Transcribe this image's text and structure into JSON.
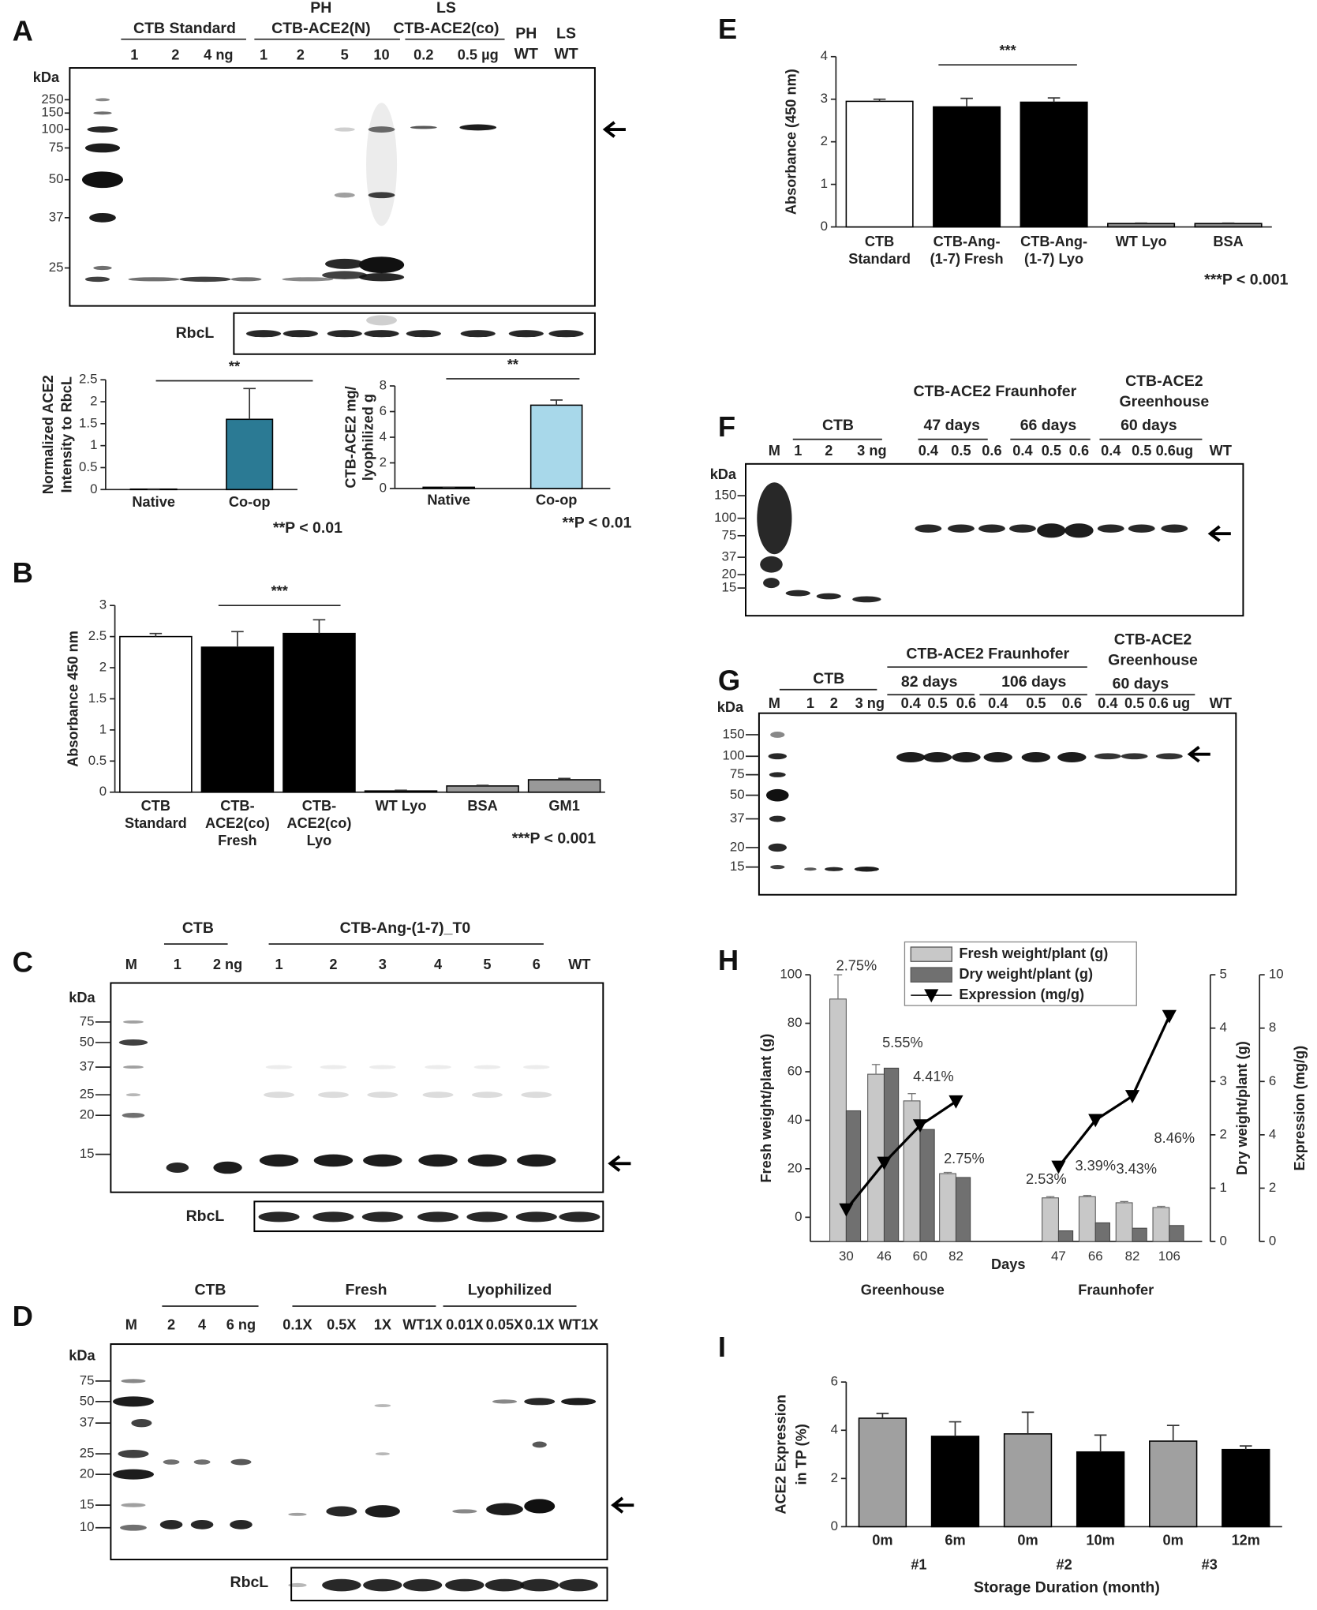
{
  "panel_labels": [
    "A",
    "B",
    "C",
    "D",
    "E",
    "F",
    "G",
    "H",
    "I"
  ],
  "blots": [
    {
      "groups": [
        [
          "CTB Standard"
        ],
        [
          "PH",
          "CTB-ACE2(N)"
        ],
        [
          "LS",
          "CTB-ACE2(co)"
        ],
        [
          "PH",
          "WT"
        ],
        [
          "LS",
          "WT"
        ]
      ],
      "lanes": [
        "1",
        "2",
        "4 ng",
        "1",
        "2",
        "5",
        "10",
        "0.2",
        "0.5 µg"
      ],
      "kda": "kDa",
      "markers": [
        250,
        150,
        100,
        75,
        50,
        37,
        25
      ],
      "loading_control": "RbcL"
    },
    {
      "groups": [
        [
          "CTB"
        ],
        [
          "CTB-Ang-(1-7)_T0"
        ]
      ],
      "lanes": [
        "M",
        "1",
        "2 ng",
        "1",
        "2",
        "3",
        "4",
        "5",
        "6",
        "WT"
      ],
      "kda": "kDa",
      "markers": [
        75,
        50,
        37,
        25,
        20,
        15
      ],
      "loading_control": "RbcL"
    },
    {
      "groups": [
        [
          "CTB"
        ],
        [
          "Fresh"
        ],
        [
          "Lyophilized"
        ]
      ],
      "lanes": [
        "M",
        "2",
        "4",
        "6 ng",
        "0.1X",
        "0.5X",
        "1X",
        "WT1X",
        "0.01X",
        "0.05X",
        "0.1X",
        "WT1X"
      ],
      "kda": "kDa",
      "markers": [
        75,
        50,
        37,
        25,
        20,
        15,
        10
      ],
      "loading_control": "RbcL"
    },
    {
      "groups": [
        [
          "CTB"
        ],
        [
          "CTB-ACE2 Fraunhofer"
        ],
        [
          "47 days"
        ],
        [
          "66 days"
        ],
        [
          "CTB-ACE2",
          "Greenhouse"
        ],
        [
          "60 days"
        ]
      ],
      "lanes": [
        "M",
        "1",
        "2",
        "3 ng",
        "0.4",
        "0.5",
        "0.6",
        "0.4",
        "0.5",
        "0.6",
        "0.4",
        "0.5",
        "0.6ug",
        "WT"
      ],
      "kda": "kDa",
      "markers": [
        150,
        100,
        75,
        37,
        20,
        15
      ]
    },
    {
      "groups": [
        [
          "CTB"
        ],
        [
          "CTB-ACE2 Fraunhofer"
        ],
        [
          "82 days"
        ],
        [
          "106 days"
        ],
        [
          "CTB-ACE2",
          "Greenhouse"
        ],
        [
          "60 days"
        ]
      ],
      "lanes": [
        "M",
        "1",
        "2",
        "3 ng",
        "0.4",
        "0.5",
        "0.6",
        "0.4",
        "0.5",
        "0.6",
        "0.4",
        "0.5",
        "0.6 ug",
        "WT"
      ],
      "kda": "kDa",
      "markers": [
        150,
        100,
        75,
        50,
        37,
        20,
        15
      ]
    }
  ],
  "chart_data": [
    {
      "type": "bar",
      "ylabel": [
        "Normalized ACE2",
        "Intensity to RbcL"
      ],
      "categories": [
        [
          "Native"
        ],
        [
          "Co-op"
        ]
      ],
      "values": [
        0.01,
        1.6
      ],
      "errors": [
        0,
        0.7
      ],
      "colors": [
        "#2b7a94",
        "#2b7a94"
      ],
      "ylim": [
        0,
        2.5
      ],
      "yticks": [
        0,
        0.5,
        1,
        1.5,
        2,
        2.5
      ],
      "significance": "**",
      "note": "**P < 0.01"
    },
    {
      "type": "bar",
      "ylabel": [
        "CTB-ACE2 mg/",
        "lyophilized g"
      ],
      "categories": [
        [
          "Native"
        ],
        [
          "Co-op"
        ]
      ],
      "values": [
        0.1,
        6.5
      ],
      "errors": [
        0,
        0.4
      ],
      "colors": [
        "#a8d8ea",
        "#a8d8ea"
      ],
      "ylim": [
        0,
        8
      ],
      "yticks": [
        0,
        2,
        4,
        6,
        8
      ],
      "significance": "**",
      "note": "**P < 0.01"
    },
    {
      "type": "bar",
      "ylabel": [
        "Absorbance 450 nm"
      ],
      "categories": [
        [
          "CTB",
          "Standard"
        ],
        [
          "CTB-",
          "ACE2(co)",
          "Fresh"
        ],
        [
          "CTB-",
          "ACE2(co)",
          "Lyo"
        ],
        [
          "WT Lyo"
        ],
        [
          "BSA"
        ],
        [
          "GM1"
        ]
      ],
      "values": [
        2.5,
        2.33,
        2.55,
        0.02,
        0.1,
        0.2
      ],
      "errors": [
        0.05,
        0.25,
        0.22,
        0.01,
        0.01,
        0.02
      ],
      "colors": [
        "#ffffff",
        "#000000",
        "#000000",
        "#888888",
        "#999999",
        "#999999"
      ],
      "ylim": [
        0,
        3
      ],
      "yticks": [
        0,
        0.5,
        1,
        1.5,
        2,
        2.5,
        3
      ],
      "significance": "***",
      "note": "***P < 0.001"
    },
    {
      "type": "bar",
      "ylabel": [
        "Absorbance (450 nm)"
      ],
      "categories": [
        [
          "CTB",
          "Standard"
        ],
        [
          "CTB-Ang-",
          "(1-7) Fresh"
        ],
        [
          "CTB-Ang-",
          "(1-7) Lyo"
        ],
        [
          "WT Lyo"
        ],
        [
          "BSA"
        ]
      ],
      "values": [
        2.95,
        2.82,
        2.93,
        0.08,
        0.08
      ],
      "errors": [
        0.05,
        0.2,
        0.1,
        0.01,
        0.01
      ],
      "colors": [
        "#ffffff",
        "#000000",
        "#000000",
        "#888888",
        "#888888"
      ],
      "ylim": [
        0,
        4
      ],
      "yticks": [
        0,
        1,
        2,
        3,
        4
      ],
      "significance": "***",
      "note": "***P < 0.001"
    },
    {
      "type": "combo",
      "ylabel": "Fresh weight/plant (g)",
      "y2label": "Dry weight/plant (g)",
      "y3label": "Expression (mg/g)",
      "xlabel": "Days",
      "categories": [
        "30",
        "46",
        "60",
        "82",
        null,
        "47",
        "66",
        "82",
        "106"
      ],
      "groups": [
        "Greenhouse",
        "Fraunhofer"
      ],
      "series": [
        {
          "name": "Fresh weight/plant (g)",
          "color": "#c8c8c8",
          "values": [
            90,
            59,
            48,
            18,
            null,
            8,
            8.5,
            6,
            4
          ],
          "errors": [
            10,
            4,
            3,
            0.5,
            null,
            0.5,
            0.5,
            0.5,
            0.5
          ]
        },
        {
          "name": "Dry weight/plant (g)",
          "color": "#707070",
          "axis": "y2",
          "values": [
            2.45,
            3.25,
            2.1,
            1.2,
            null,
            0.2,
            0.35,
            0.25,
            0.3
          ]
        },
        {
          "name": "Expression (mg/g)",
          "color": "#000000",
          "axis": "y3",
          "values": [
            1.2,
            2.95,
            4.35,
            5.25,
            null,
            2.8,
            4.55,
            5.45,
            8.45
          ]
        }
      ],
      "annotations": [
        "2.75%",
        "5.55%",
        "4.41%",
        "2.75%",
        null,
        "2.53%",
        "3.39%",
        "3.43%",
        "8.46%"
      ],
      "ylim": [
        -10,
        100
      ],
      "yticks": [
        0,
        20,
        40,
        60,
        80,
        100
      ],
      "y2lim": [
        0,
        5
      ],
      "y2ticks": [
        0,
        1,
        2,
        3,
        4,
        5
      ],
      "y3lim": [
        0,
        10
      ],
      "y3ticks": [
        0,
        2,
        4,
        6,
        8,
        10
      ],
      "legend": "upper center"
    },
    {
      "type": "bar",
      "ylabel": [
        "ACE2 Expression",
        "in TP (%)"
      ],
      "categories": [
        [
          "0m"
        ],
        [
          "6m"
        ],
        [
          "0m"
        ],
        [
          "10m"
        ],
        [
          "0m"
        ],
        [
          "12m"
        ]
      ],
      "groups": [
        "#1",
        "#2",
        "#3"
      ],
      "xlabel": "Storage Duration (month)",
      "values": [
        4.5,
        3.75,
        3.85,
        3.1,
        3.55,
        3.2
      ],
      "errors": [
        0.2,
        0.6,
        0.9,
        0.7,
        0.65,
        0.15
      ],
      "colors": [
        "#a0a0a0",
        "#000000",
        "#a0a0a0",
        "#000000",
        "#a0a0a0",
        "#000000"
      ],
      "ylim": [
        0,
        6
      ],
      "yticks": [
        0,
        2,
        4,
        6
      ]
    }
  ]
}
